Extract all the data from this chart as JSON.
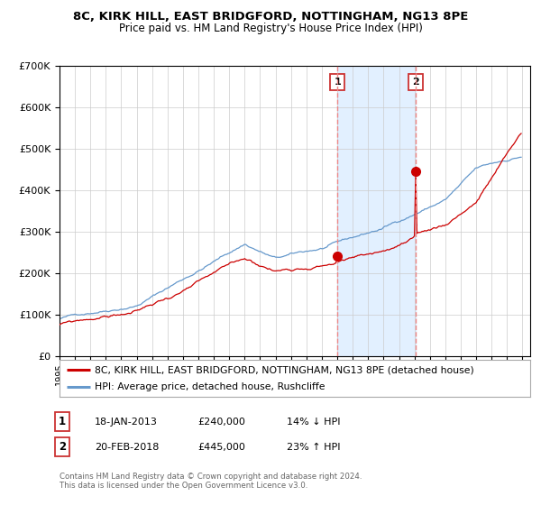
{
  "title": "8C, KIRK HILL, EAST BRIDGFORD, NOTTINGHAM, NG13 8PE",
  "subtitle": "Price paid vs. HM Land Registry's House Price Index (HPI)",
  "legend_red": "8C, KIRK HILL, EAST BRIDGFORD, NOTTINGHAM, NG13 8PE (detached house)",
  "legend_blue": "HPI: Average price, detached house, Rushcliffe",
  "annotation1_label": "1",
  "annotation1_date": "18-JAN-2013",
  "annotation1_price": "£240,000",
  "annotation1_hpi": "14% ↓ HPI",
  "annotation2_label": "2",
  "annotation2_date": "20-FEB-2018",
  "annotation2_price": "£445,000",
  "annotation2_hpi": "23% ↑ HPI",
  "footer": "Contains HM Land Registry data © Crown copyright and database right 2024.\nThis data is licensed under the Open Government Licence v3.0.",
  "red_color": "#cc0000",
  "blue_color": "#6699cc",
  "shade_color": "#ddeeff",
  "grid_color": "#cccccc",
  "ylim": [
    0,
    700000
  ],
  "xlim_start": 1995,
  "xlim_end": 2025.5,
  "sale1_year": 2013.05,
  "sale1_price": 240000,
  "sale2_year": 2018.12,
  "sale2_price": 445000
}
